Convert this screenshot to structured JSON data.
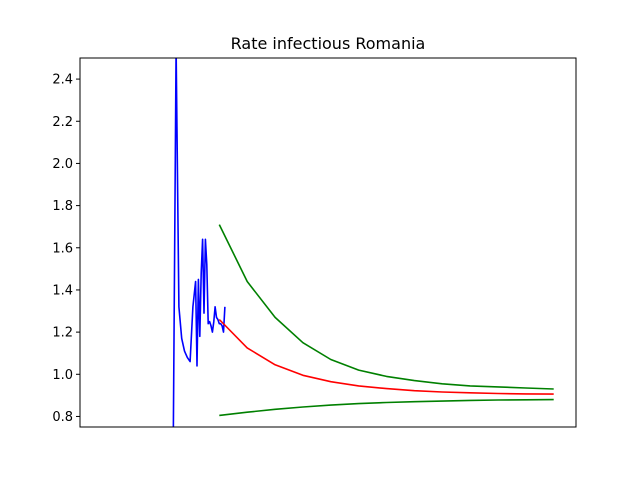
{
  "chart_data": {
    "type": "line",
    "title": "Rate infectious Romania",
    "xlabel": "",
    "ylabel": "",
    "ylim": [
      0.75,
      2.5
    ],
    "xlim": [
      -20,
      336
    ],
    "x_ticks_visible": false,
    "yticks": [
      0.8,
      1.0,
      1.2,
      1.4,
      1.6,
      1.8,
      2.0,
      2.2,
      2.4
    ],
    "ytick_labels": [
      "0.8",
      "1.0",
      "1.2",
      "1.4",
      "1.6",
      "1.8",
      "2.0",
      "2.2",
      "2.4"
    ],
    "grid": false,
    "legend": "none",
    "series": [
      {
        "color": "#0000ff",
        "x": [
          47,
          49,
          51,
          53,
          55,
          57,
          59,
          61,
          63,
          64,
          65,
          66,
          67,
          68,
          69,
          70,
          71,
          72,
          73,
          74,
          75,
          76,
          77,
          78,
          79,
          80,
          81,
          82,
          83,
          84
        ],
        "y": [
          0.7,
          2.55,
          1.32,
          1.17,
          1.11,
          1.08,
          1.06,
          1.32,
          1.44,
          1.04,
          1.45,
          1.18,
          1.48,
          1.64,
          1.29,
          1.64,
          1.52,
          1.24,
          1.25,
          1.23,
          1.2,
          1.25,
          1.32,
          1.27,
          1.26,
          1.24,
          1.24,
          1.23,
          1.2,
          1.32
        ]
      },
      {
        "color": "#ff0000",
        "x": [
          80,
          100,
          120,
          140,
          160,
          180,
          200,
          220,
          240,
          260,
          280,
          300,
          320
        ],
        "y": [
          1.26,
          1.125,
          1.045,
          0.995,
          0.965,
          0.945,
          0.932,
          0.922,
          0.916,
          0.912,
          0.909,
          0.907,
          0.906
        ]
      },
      {
        "color": "#008000",
        "x": [
          80,
          100,
          120,
          140,
          160,
          180,
          200,
          220,
          240,
          260,
          280,
          300,
          320
        ],
        "y": [
          1.71,
          1.44,
          1.27,
          1.15,
          1.07,
          1.02,
          0.99,
          0.97,
          0.955,
          0.945,
          0.94,
          0.935,
          0.93
        ]
      },
      {
        "color": "#008000",
        "x": [
          80,
          100,
          120,
          140,
          160,
          180,
          200,
          220,
          240,
          260,
          280,
          300,
          320
        ],
        "y": [
          0.805,
          0.82,
          0.834,
          0.845,
          0.854,
          0.861,
          0.866,
          0.87,
          0.873,
          0.876,
          0.878,
          0.879,
          0.88
        ]
      }
    ]
  }
}
